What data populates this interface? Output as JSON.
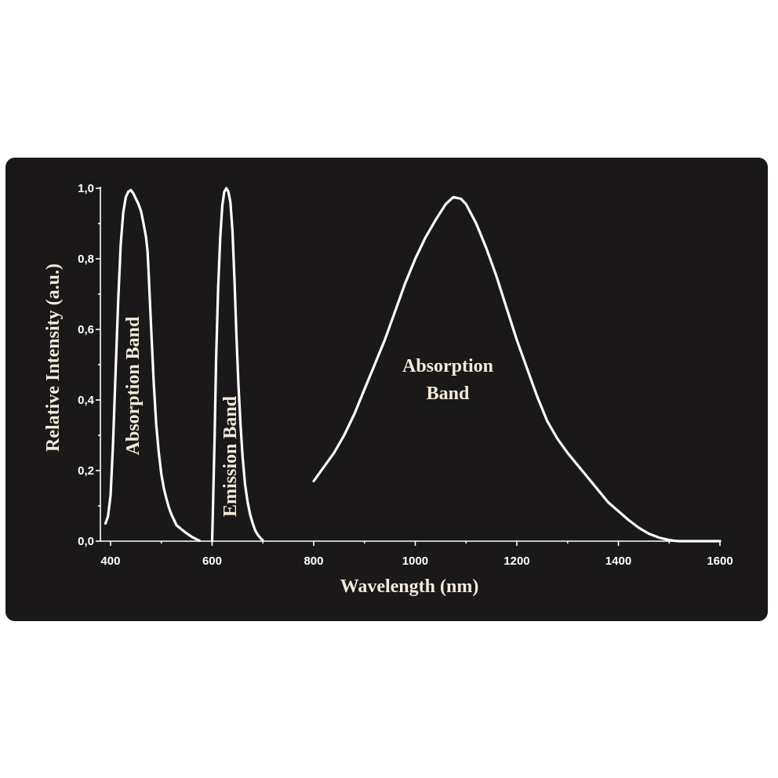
{
  "chart_data": {
    "type": "line",
    "xlabel": "Wavelength (nm)",
    "ylabel": "Relative Intensity (a.u.)",
    "xlim": [
      380,
      1600
    ],
    "ylim": [
      0,
      1.0
    ],
    "xticks": [
      400,
      600,
      800,
      1000,
      1200,
      1400,
      1600
    ],
    "yticks": [
      "0,0",
      "0,2",
      "0,4",
      "0,6",
      "0,8",
      "1,0"
    ],
    "grid": false,
    "series": [
      {
        "x": [
          390,
          395,
          400,
          405,
          410,
          415,
          420,
          425,
          430,
          435,
          440,
          445,
          450,
          455,
          460,
          465,
          470,
          473,
          475,
          480,
          485,
          490,
          495,
          500,
          505,
          510,
          515,
          520,
          525,
          530,
          540,
          550,
          560,
          570,
          575
        ],
        "y": [
          0.05,
          0.07,
          0.13,
          0.28,
          0.48,
          0.68,
          0.84,
          0.93,
          0.975,
          0.99,
          0.995,
          0.985,
          0.97,
          0.955,
          0.935,
          0.9,
          0.86,
          0.82,
          0.76,
          0.6,
          0.45,
          0.33,
          0.25,
          0.19,
          0.15,
          0.12,
          0.095,
          0.075,
          0.06,
          0.045,
          0.033,
          0.022,
          0.012,
          0.005,
          0.001
        ]
      },
      {
        "x": [
          600,
          602,
          605,
          608,
          612,
          616,
          620,
          624,
          628,
          632,
          636,
          640,
          644,
          648,
          652,
          656,
          660,
          665,
          670,
          675,
          680,
          685,
          690,
          695,
          700
        ],
        "y": [
          0.0,
          0.12,
          0.3,
          0.52,
          0.72,
          0.86,
          0.95,
          0.99,
          1.0,
          0.99,
          0.96,
          0.88,
          0.74,
          0.58,
          0.44,
          0.33,
          0.24,
          0.16,
          0.11,
          0.075,
          0.05,
          0.03,
          0.018,
          0.009,
          0.002
        ]
      },
      {
        "x": [
          800,
          810,
          820,
          840,
          860,
          880,
          900,
          920,
          940,
          960,
          980,
          1000,
          1020,
          1040,
          1060,
          1075,
          1090,
          1100,
          1120,
          1140,
          1160,
          1180,
          1200,
          1220,
          1240,
          1260,
          1280,
          1300,
          1320,
          1340,
          1360,
          1380,
          1400,
          1420,
          1440,
          1460,
          1480,
          1500,
          1510,
          1520,
          1540,
          1560,
          1580,
          1600
        ],
        "y": [
          0.17,
          0.19,
          0.21,
          0.25,
          0.3,
          0.36,
          0.43,
          0.5,
          0.57,
          0.65,
          0.73,
          0.8,
          0.86,
          0.91,
          0.955,
          0.975,
          0.97,
          0.955,
          0.9,
          0.83,
          0.75,
          0.66,
          0.57,
          0.49,
          0.41,
          0.34,
          0.29,
          0.25,
          0.215,
          0.18,
          0.145,
          0.11,
          0.085,
          0.06,
          0.038,
          0.021,
          0.01,
          0.003,
          0.001,
          0.0,
          0.0,
          0.0,
          0.0,
          0.0
        ]
      }
    ],
    "annotations": [
      {
        "text": "Absorption Band",
        "orientation": "vertical"
      },
      {
        "text": "Emission Band",
        "orientation": "vertical"
      },
      {
        "text_lines": [
          "Absorption",
          "Band"
        ],
        "orientation": "horizontal"
      }
    ]
  },
  "colors": {
    "background": "#1a1818",
    "curve": "#ffffff",
    "label_text": "#f4eadc"
  }
}
